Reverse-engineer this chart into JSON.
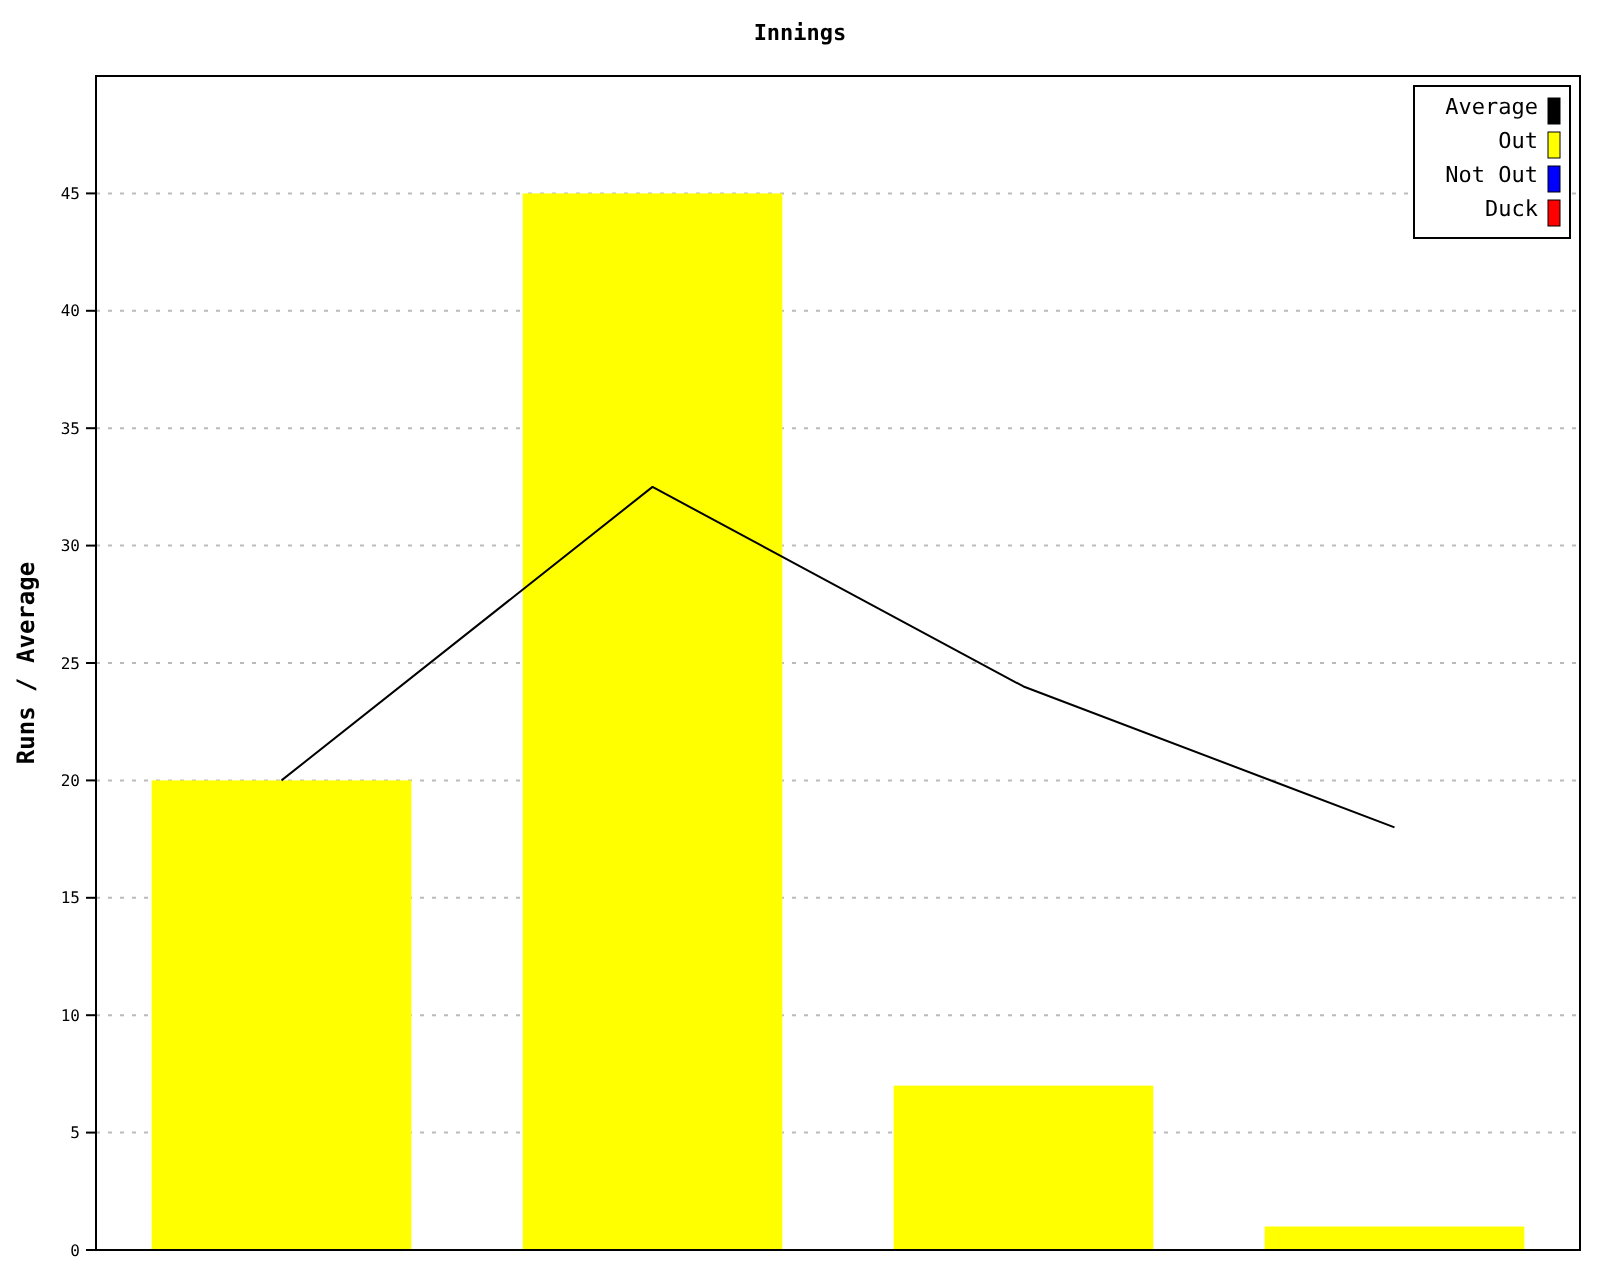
{
  "chart_data": {
    "type": "bar",
    "title": "Innings",
    "ylabel": "Runs / Average",
    "categories": [
      null,
      null,
      null,
      null
    ],
    "series": [
      {
        "name": "Average",
        "type": "line",
        "color": "#000000",
        "values": [
          20,
          32.5,
          24,
          18
        ]
      },
      {
        "name": "Out",
        "color": "#ffff00",
        "values": [
          20,
          45,
          7,
          1
        ]
      },
      {
        "name": "Not Out",
        "color": "#0000ff",
        "values": [
          0,
          0,
          0,
          0
        ]
      },
      {
        "name": "Duck",
        "color": "#ff0000",
        "values": [
          0,
          0,
          0,
          0
        ]
      }
    ],
    "ylim": [
      0,
      50
    ],
    "yticks": [
      0,
      5,
      10,
      15,
      20,
      25,
      30,
      35,
      40,
      45
    ],
    "grid": "y",
    "legend": "top right"
  }
}
